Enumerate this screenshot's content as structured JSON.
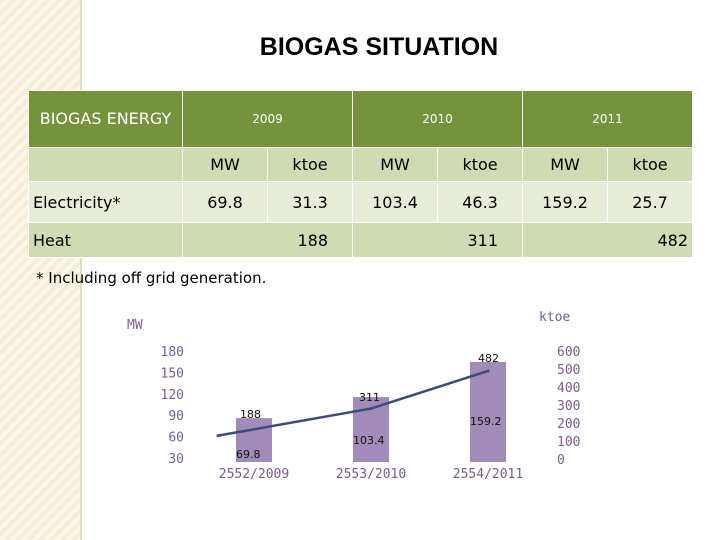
{
  "title": "BIOGAS SITUATION",
  "table": {
    "corner_label": "BIOGAS ENERGY",
    "years": [
      "2009",
      "2010",
      "2011"
    ],
    "units": [
      "MW",
      "ktoe",
      "MW",
      "ktoe",
      "MW",
      "ktoe"
    ],
    "electricity": {
      "label": "Electricity*",
      "values": [
        "69.8",
        "31.3",
        "103.4",
        "46.3",
        "159.2",
        "25.7"
      ]
    },
    "heat": {
      "label": "Heat",
      "values": [
        "188",
        "311",
        "482"
      ]
    }
  },
  "footnote": "* Including off grid generation.",
  "colors": {
    "header": "#76923c",
    "row_dark": "#cfdbb2",
    "row_light": "#e8edd9",
    "bar": "#8064a2",
    "line": "#3d4b79",
    "axis_text": "#7a5c94"
  },
  "chart_data": {
    "type": "bar",
    "categories": [
      "2552/2009",
      "2553/2010",
      "2554/2011"
    ],
    "series": [
      {
        "name": "MW",
        "type": "bar",
        "axis": "left",
        "values": [
          69.8,
          103.4,
          159.2
        ]
      },
      {
        "name": "ktoe",
        "type": "line",
        "axis": "right",
        "values": [
          188,
          311,
          482
        ]
      }
    ],
    "left_axis": {
      "label": "MW",
      "ticks": [
        "180",
        "150",
        "120",
        "90",
        "60",
        "30"
      ],
      "range": [
        0,
        180
      ]
    },
    "right_axis": {
      "label": "ktoe",
      "ticks": [
        "600",
        "500",
        "400",
        "300",
        "200",
        "100",
        "0"
      ],
      "range": [
        0,
        600
      ]
    },
    "grid": false
  }
}
